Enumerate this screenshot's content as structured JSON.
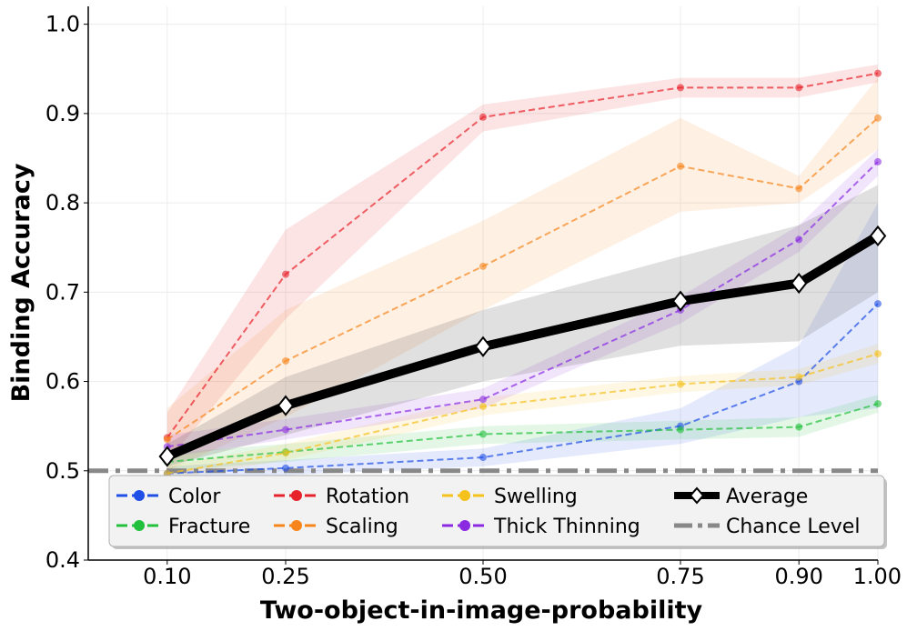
{
  "chart_data": {
    "type": "line",
    "xlabel": "Two-object-in-image-probability",
    "ylabel": "Binding Accuracy",
    "x": [
      0.1,
      0.25,
      0.5,
      0.75,
      0.9,
      1.0
    ],
    "x_tick_labels": [
      "0.10",
      "0.25",
      "0.50",
      "0.75",
      "0.90",
      "1.00"
    ],
    "xlim": [
      0.0,
      1.0
    ],
    "ylim": [
      0.4,
      1.02
    ],
    "y_ticks": [
      0.4,
      0.5,
      0.6,
      0.7,
      0.8,
      0.9,
      1.0
    ],
    "y_tick_labels": [
      "0.4",
      "0.5",
      "0.6",
      "0.7",
      "0.8",
      "0.9",
      "1.0"
    ],
    "grid": true,
    "series": [
      {
        "name": "Color",
        "color": "#1f4fe6",
        "style": "dashed",
        "marker": "circle",
        "values": [
          0.497,
          0.503,
          0.515,
          0.55,
          0.6,
          0.687
        ],
        "lower": [
          0.49,
          0.495,
          0.505,
          0.53,
          0.56,
          0.57
        ],
        "upper": [
          0.505,
          0.512,
          0.525,
          0.57,
          0.64,
          0.8
        ]
      },
      {
        "name": "Fracture",
        "color": "#22c03c",
        "style": "dashed",
        "marker": "circle",
        "values": [
          0.51,
          0.521,
          0.541,
          0.546,
          0.549,
          0.575
        ],
        "lower": [
          0.5,
          0.51,
          0.53,
          0.535,
          0.538,
          0.565
        ],
        "upper": [
          0.52,
          0.53,
          0.55,
          0.556,
          0.56,
          0.585
        ]
      },
      {
        "name": "Rotation",
        "color": "#e8222a",
        "style": "dashed",
        "marker": "circle",
        "values": [
          0.537,
          0.72,
          0.896,
          0.929,
          0.929,
          0.945
        ],
        "lower": [
          0.51,
          0.67,
          0.88,
          0.918,
          0.918,
          0.935
        ],
        "upper": [
          0.565,
          0.77,
          0.91,
          0.94,
          0.94,
          0.955
        ]
      },
      {
        "name": "Scaling",
        "color": "#f7851b",
        "style": "dashed",
        "marker": "circle",
        "values": [
          0.535,
          0.623,
          0.729,
          0.841,
          0.816,
          0.895
        ],
        "lower": [
          0.5,
          0.56,
          0.68,
          0.79,
          0.8,
          0.86
        ],
        "upper": [
          0.57,
          0.68,
          0.78,
          0.895,
          0.83,
          0.94
        ]
      },
      {
        "name": "Swelling",
        "color": "#f5c11b",
        "style": "dashed",
        "marker": "circle",
        "values": [
          0.497,
          0.52,
          0.572,
          0.597,
          0.605,
          0.631
        ],
        "lower": [
          0.49,
          0.512,
          0.562,
          0.588,
          0.596,
          0.62
        ],
        "upper": [
          0.505,
          0.53,
          0.582,
          0.606,
          0.614,
          0.642
        ]
      },
      {
        "name": "Thick Thinning",
        "color": "#8a2be2",
        "style": "dashed",
        "marker": "circle",
        "values": [
          0.527,
          0.546,
          0.58,
          0.68,
          0.759,
          0.846
        ],
        "lower": [
          0.515,
          0.535,
          0.57,
          0.665,
          0.745,
          0.83
        ],
        "upper": [
          0.54,
          0.558,
          0.592,
          0.695,
          0.775,
          0.86
        ]
      },
      {
        "name": "Average",
        "color": "#000000",
        "style": "solid",
        "marker": "diamond",
        "values": [
          0.516,
          0.573,
          0.639,
          0.69,
          0.71,
          0.763
        ],
        "lower": [
          0.505,
          0.54,
          0.6,
          0.64,
          0.645,
          0.7
        ],
        "upper": [
          0.53,
          0.605,
          0.68,
          0.74,
          0.775,
          0.82
        ]
      }
    ],
    "reference_lines": [
      {
        "name": "Chance Level",
        "value": 0.5,
        "color": "#888888",
        "style": "dashdot"
      }
    ],
    "legend": {
      "placement": "lower-center",
      "columns": [
        [
          "Color",
          "Fracture"
        ],
        [
          "Rotation",
          "Scaling"
        ],
        [
          "Swelling",
          "Thick Thinning"
        ],
        [
          "Average",
          "Chance Level"
        ]
      ]
    }
  }
}
